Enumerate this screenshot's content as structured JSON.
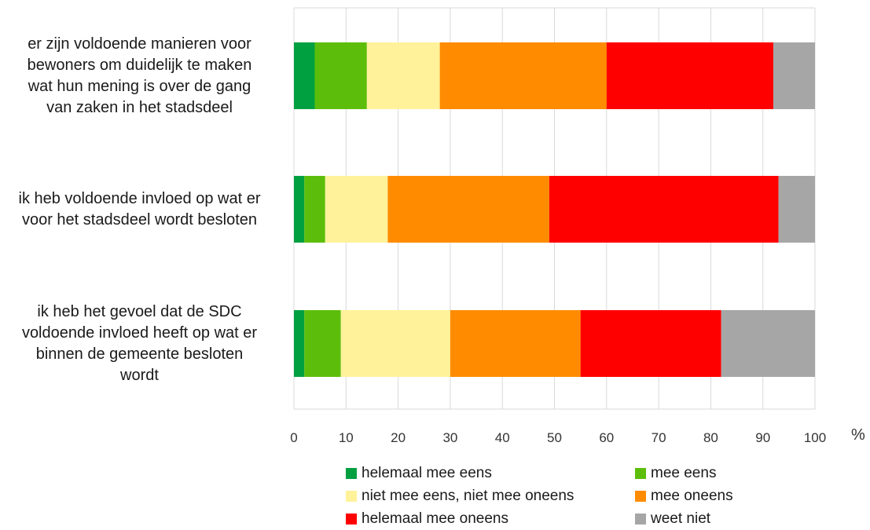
{
  "chart_data": {
    "type": "bar",
    "orientation": "horizontal",
    "stacked": true,
    "categories": [
      "er zijn voldoende manieren voor bewoners om duidelijk te maken wat hun mening is over de gang van zaken in het stadsdeel",
      "ik heb voldoende invloed op wat er voor het stadsdeel wordt besloten",
      "ik heb het gevoel dat de SDC voldoende invloed heeft op wat er binnen de gemeente besloten wordt"
    ],
    "category_lines": [
      [
        "er zijn voldoende manieren voor",
        "bewoners om duidelijk te maken",
        "wat hun mening is over de gang",
        "van zaken in het stadsdeel"
      ],
      [
        "ik heb voldoende invloed op wat er",
        "voor het stadsdeel wordt besloten"
      ],
      [
        "ik heb het gevoel dat de SDC",
        "voldoende invloed heeft op wat er",
        "binnen de gemeente besloten",
        "wordt"
      ]
    ],
    "series": [
      {
        "name": "helemaal mee eens",
        "color": "#00A040",
        "values": [
          4,
          2,
          2
        ]
      },
      {
        "name": "mee eens",
        "color": "#5CBE0A",
        "values": [
          10,
          4,
          7
        ]
      },
      {
        "name": "niet mee eens, niet mee oneens",
        "color": "#FFF29A",
        "values": [
          14,
          12,
          21
        ]
      },
      {
        "name": "mee oneens",
        "color": "#FF8C00",
        "values": [
          32,
          31,
          25
        ]
      },
      {
        "name": "helemaal mee oneens",
        "color": "#FF0000",
        "values": [
          32,
          44,
          27
        ]
      },
      {
        "name": "weet niet",
        "color": "#A6A6A6",
        "values": [
          8,
          7,
          18
        ]
      }
    ],
    "xlim": [
      0,
      100
    ],
    "xticks": [
      "0",
      "10",
      "20",
      "30",
      "40",
      "50",
      "60",
      "70",
      "80",
      "90",
      "100"
    ],
    "xunit": "%",
    "grid": true,
    "legend_position": "bottom"
  }
}
